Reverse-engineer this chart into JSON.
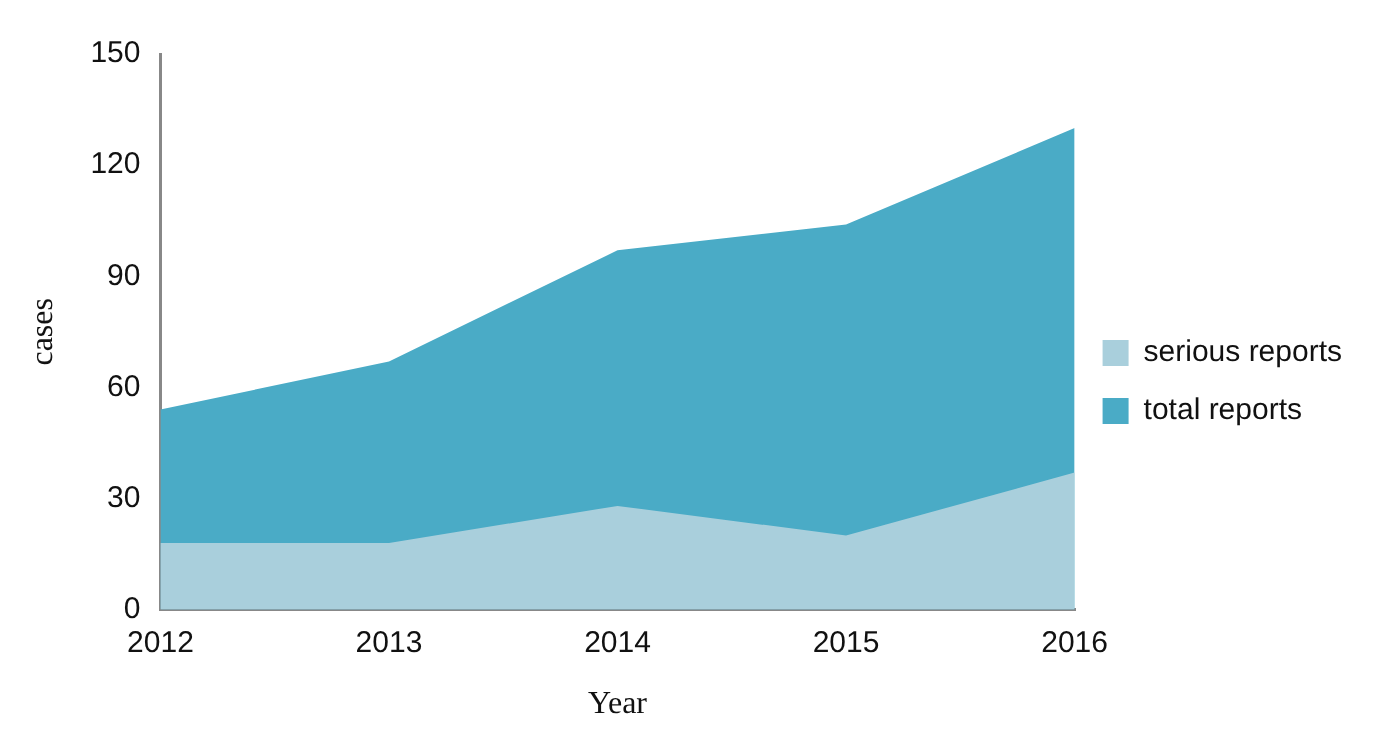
{
  "chart_data": {
    "type": "area",
    "xlabel": "Year",
    "ylabel": "cases",
    "categories": [
      "2012",
      "2013",
      "2014",
      "2015",
      "2016"
    ],
    "series": [
      {
        "name": "total reports",
        "color": "#4aabc6",
        "values": [
          54,
          67,
          97,
          104,
          130
        ]
      },
      {
        "name": "serious reports",
        "color": "#a9cfdc",
        "values": [
          18,
          18,
          28,
          20,
          37
        ]
      }
    ],
    "ylim": [
      0,
      150
    ],
    "yticks": [
      0,
      30,
      60,
      90,
      120,
      150
    ],
    "grid": false,
    "legend": "right"
  }
}
